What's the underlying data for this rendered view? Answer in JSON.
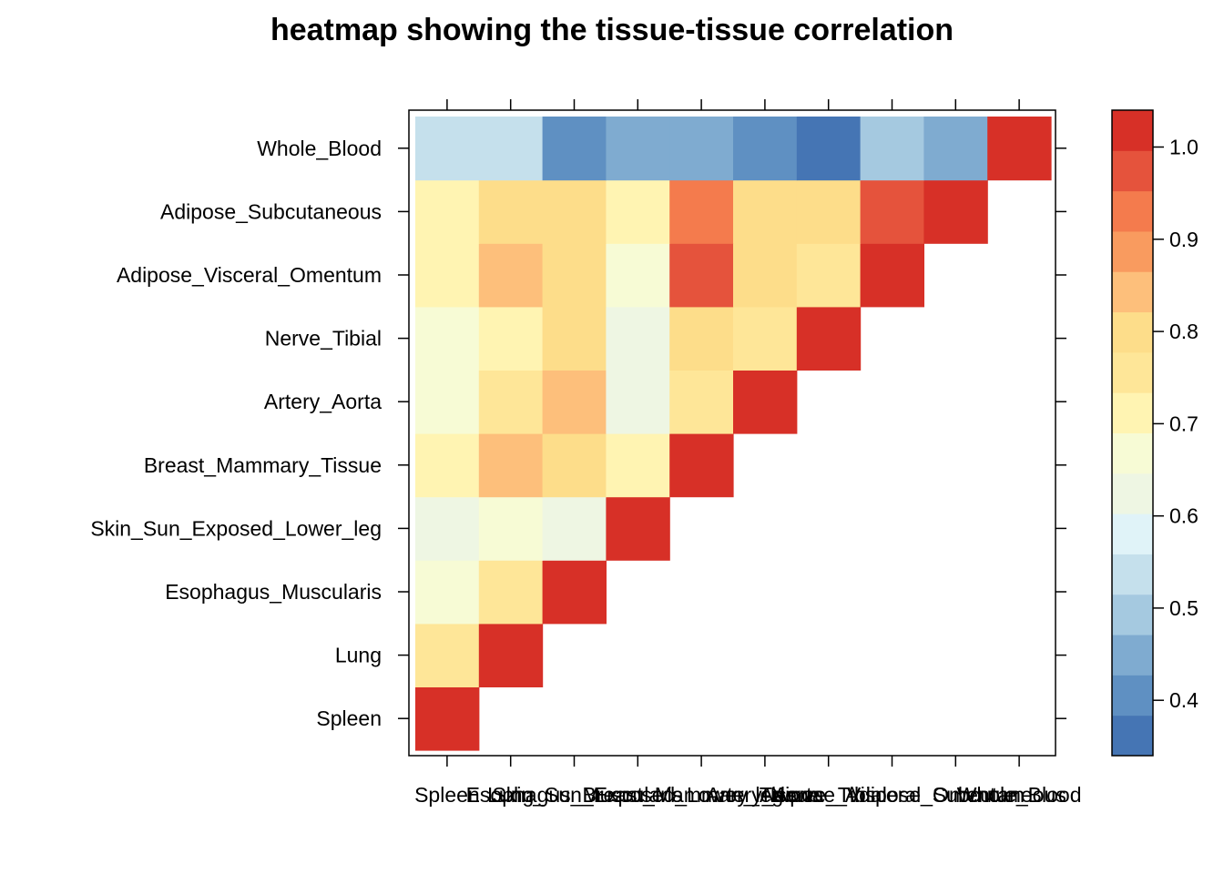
{
  "chart_data": {
    "type": "heatmap",
    "title": "heatmap showing the tissue-tissue correlation",
    "xlabel": "",
    "ylabel": "",
    "tissues": [
      "Spleen",
      "Lung",
      "Esophagus_Muscularis",
      "Skin_Sun_Exposed_Lower_leg",
      "Breast_Mammary_Tissue",
      "Artery_Aorta",
      "Nerve_Tibial",
      "Adipose_Visceral_Omentum",
      "Adipose_Subcutaneous",
      "Whole_Blood"
    ],
    "x_categories": [
      "Spleen",
      "Lung",
      "Esophagus_Muscularis",
      "Skin_Sun_Exposed_Lower_leg",
      "Breast_Mammary_Tissue",
      "Artery_Aorta",
      "Nerve_Tibial",
      "Adipose_Visceral_Omentum",
      "Adipose_Subcutaneous",
      "Whole_Blood"
    ],
    "y_categories": [
      "Spleen",
      "Lung",
      "Esophagus_Muscularis",
      "Skin_Sun_Exposed_Lower_leg",
      "Breast_Mammary_Tissue",
      "Artery_Aorta",
      "Nerve_Tibial",
      "Adipose_Visceral_Omentum",
      "Adipose_Subcutaneous",
      "Whole_Blood"
    ],
    "matrix": [
      [
        1.0
      ],
      [
        0.76,
        1.0
      ],
      [
        0.69,
        0.76,
        1.0
      ],
      [
        0.64,
        0.69,
        0.64,
        1.0
      ],
      [
        0.73,
        0.84,
        0.81,
        0.72,
        1.0
      ],
      [
        0.68,
        0.77,
        0.85,
        0.64,
        0.76,
        1.0
      ],
      [
        0.68,
        0.73,
        0.78,
        0.64,
        0.81,
        0.77,
        1.0
      ],
      [
        0.73,
        0.84,
        0.81,
        0.68,
        0.96,
        0.81,
        0.76,
        1.0
      ],
      [
        0.73,
        0.8,
        0.8,
        0.73,
        0.92,
        0.8,
        0.8,
        0.96,
        1.0
      ],
      [
        0.54,
        0.54,
        0.42,
        0.46,
        0.46,
        0.42,
        0.38,
        0.5,
        0.46,
        1.0
      ]
    ],
    "value_range": [
      0.34,
      1.04
    ],
    "colorbar_ticks": [
      "0.4",
      "0.5",
      "0.6",
      "0.7",
      "0.8",
      "0.9",
      "1.0"
    ],
    "colorbar_tick_values": [
      0.4,
      0.5,
      0.6,
      0.7,
      0.8,
      0.9,
      1.0
    ],
    "color_levels": [
      "#4575b4",
      "#5f90c2",
      "#7fabd0",
      "#a5c9e0",
      "#c5e0ec",
      "#e0f3f8",
      "#eef6e3",
      "#f7fbd5",
      "#fff4b2",
      "#fee698",
      "#fddd8a",
      "#fdbf7b",
      "#f99b5f",
      "#f47b4d",
      "#e5533c",
      "#d73027"
    ]
  }
}
